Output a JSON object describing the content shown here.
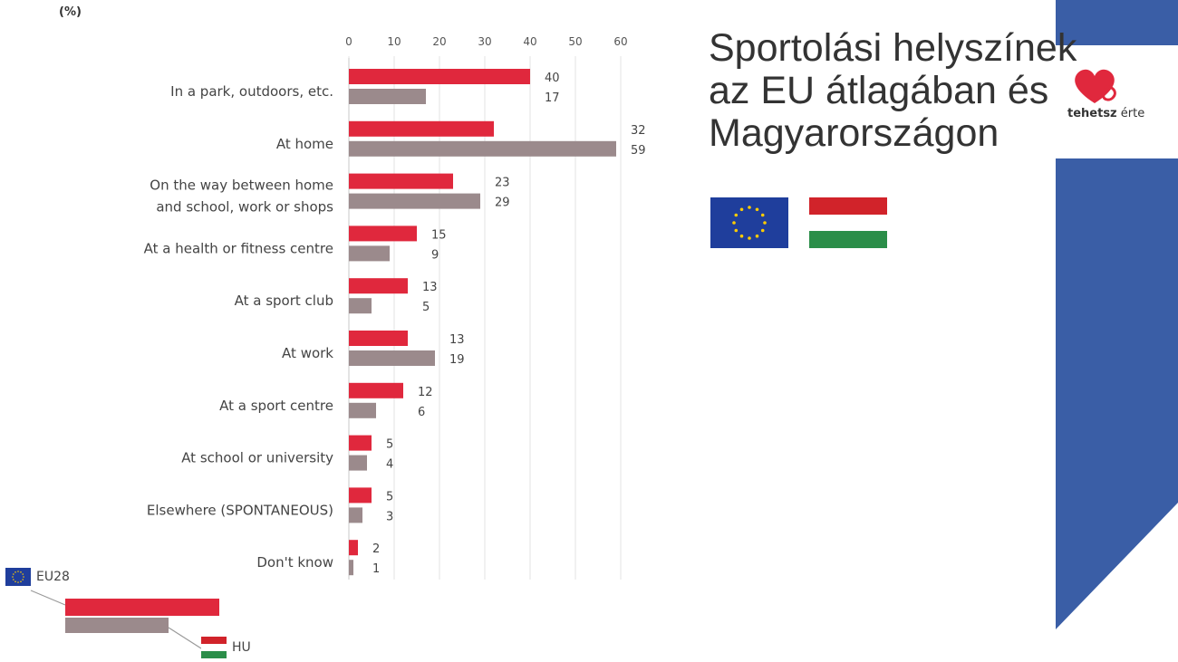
{
  "unit_label": "(%)",
  "slide_title": {
    "line1": "Sportolási helyszínek",
    "line2": "az EU átlagában és",
    "line3": "Magyarországon"
  },
  "logo": {
    "text_bold": "tehetsz",
    "text_rest": " érte",
    "icon": "heart-icon"
  },
  "colors": {
    "eu_bar": "#e0283d",
    "hu_bar": "#9b8a8c",
    "accent_blue": "#3a5ea6",
    "eu_flag": "#1f3e9c",
    "hu_red": "#d1232a",
    "hu_green": "#2b8e49"
  },
  "legend": {
    "eu_label": "EU28",
    "hu_label": "HU"
  },
  "chart_data": {
    "type": "bar",
    "orientation": "horizontal",
    "xlim": [
      0,
      60
    ],
    "x_ticks": [
      "0",
      "10",
      "20",
      "30",
      "40",
      "50",
      "60"
    ],
    "categories": [
      [
        "In a park, outdoors, etc."
      ],
      [
        "At home"
      ],
      [
        "On the way between home",
        "and school, work or shops"
      ],
      [
        "At a health or fitness centre"
      ],
      [
        "At a sport club"
      ],
      [
        "At work"
      ],
      [
        "At a sport centre"
      ],
      [
        "At school or university"
      ],
      [
        "Elsewhere (SPONTANEOUS)"
      ],
      [
        "Don't know"
      ]
    ],
    "series": [
      {
        "name": "EU28",
        "values": [
          40,
          32,
          23,
          15,
          13,
          13,
          12,
          5,
          5,
          2
        ],
        "labels": [
          "40",
          "32",
          "23",
          "15",
          "13",
          "13",
          "12",
          "5",
          "5",
          "2"
        ]
      },
      {
        "name": "HU",
        "values": [
          17,
          59,
          29,
          9,
          5,
          19,
          6,
          4,
          3,
          1
        ],
        "labels": [
          "17",
          "59",
          "29",
          "9",
          "5",
          "19",
          "6",
          "4",
          "3",
          "1"
        ]
      }
    ],
    "grid": "vertical"
  }
}
